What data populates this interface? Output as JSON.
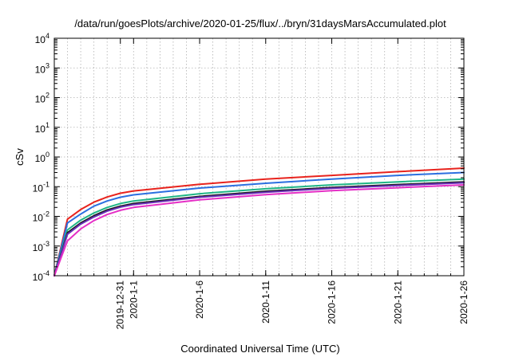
{
  "chart_data": {
    "type": "line",
    "title": "/data/run/goesPlots/archive/2020-01-25/flux/../bryn/31daysMarsAccumulated.plot",
    "xlabel": "Coordinated Universal Time (UTC)",
    "ylabel": "cSv",
    "yscale": "log",
    "ylim": [
      0.0001,
      10000
    ],
    "xlim": [
      "2019-12-26",
      "2020-01-26"
    ],
    "y_ticks": [
      {
        "value": 0.0001,
        "base": "10",
        "exp": "-4"
      },
      {
        "value": 0.001,
        "base": "10",
        "exp": "-3"
      },
      {
        "value": 0.01,
        "base": "10",
        "exp": "-2"
      },
      {
        "value": 0.1,
        "base": "10",
        "exp": "-1"
      },
      {
        "value": 1,
        "base": "10",
        "exp": "0"
      },
      {
        "value": 10,
        "base": "10",
        "exp": "1"
      },
      {
        "value": 100,
        "base": "10",
        "exp": "2"
      },
      {
        "value": 1000,
        "base": "10",
        "exp": "3"
      },
      {
        "value": 10000,
        "base": "10",
        "exp": "4"
      }
    ],
    "x_ticks": [
      {
        "date": "2019-12-31",
        "label": "2019-12-31"
      },
      {
        "date": "2020-01-01",
        "label": "2020-1-1"
      },
      {
        "date": "2020-01-06",
        "label": "2020-1-6"
      },
      {
        "date": "2020-01-11",
        "label": "2020-1-11"
      },
      {
        "date": "2020-01-16",
        "label": "2020-1-16"
      },
      {
        "date": "2020-01-21",
        "label": "2020-1-21"
      },
      {
        "date": "2020-01-26",
        "label": "2020-1-26"
      }
    ],
    "grid": true,
    "x": [
      "2019-12-26",
      "2019-12-27",
      "2019-12-28",
      "2019-12-29",
      "2019-12-30",
      "2019-12-31",
      "2020-01-01",
      "2020-01-06",
      "2020-01-11",
      "2020-01-16",
      "2020-01-21",
      "2020-01-26"
    ],
    "series": [
      {
        "color": "#e8231d",
        "values": [
          0.0001,
          0.008,
          0.017,
          0.03,
          0.045,
          0.06,
          0.072,
          0.12,
          0.18,
          0.24,
          0.32,
          0.42
        ]
      },
      {
        "color": "#2b6fe0",
        "values": [
          0.0001,
          0.006,
          0.012,
          0.022,
          0.033,
          0.044,
          0.053,
          0.09,
          0.13,
          0.18,
          0.24,
          0.3
        ]
      },
      {
        "color": "#1fb585",
        "values": [
          0.0001,
          0.0035,
          0.0075,
          0.013,
          0.02,
          0.027,
          0.033,
          0.058,
          0.085,
          0.115,
          0.145,
          0.18
        ]
      },
      {
        "color": "#1a1a1a",
        "values": [
          0.0001,
          0.0028,
          0.006,
          0.0105,
          0.0165,
          0.022,
          0.027,
          0.047,
          0.07,
          0.094,
          0.118,
          0.145
        ]
      },
      {
        "color": "#6a2fb8",
        "values": [
          0.0001,
          0.0025,
          0.0055,
          0.0095,
          0.015,
          0.0205,
          0.025,
          0.044,
          0.065,
          0.088,
          0.11,
          0.135
        ]
      },
      {
        "color": "#e52fc6",
        "values": [
          0.0001,
          0.0015,
          0.0038,
          0.0072,
          0.0115,
          0.016,
          0.02,
          0.036,
          0.054,
          0.073,
          0.092,
          0.115
        ]
      }
    ]
  }
}
